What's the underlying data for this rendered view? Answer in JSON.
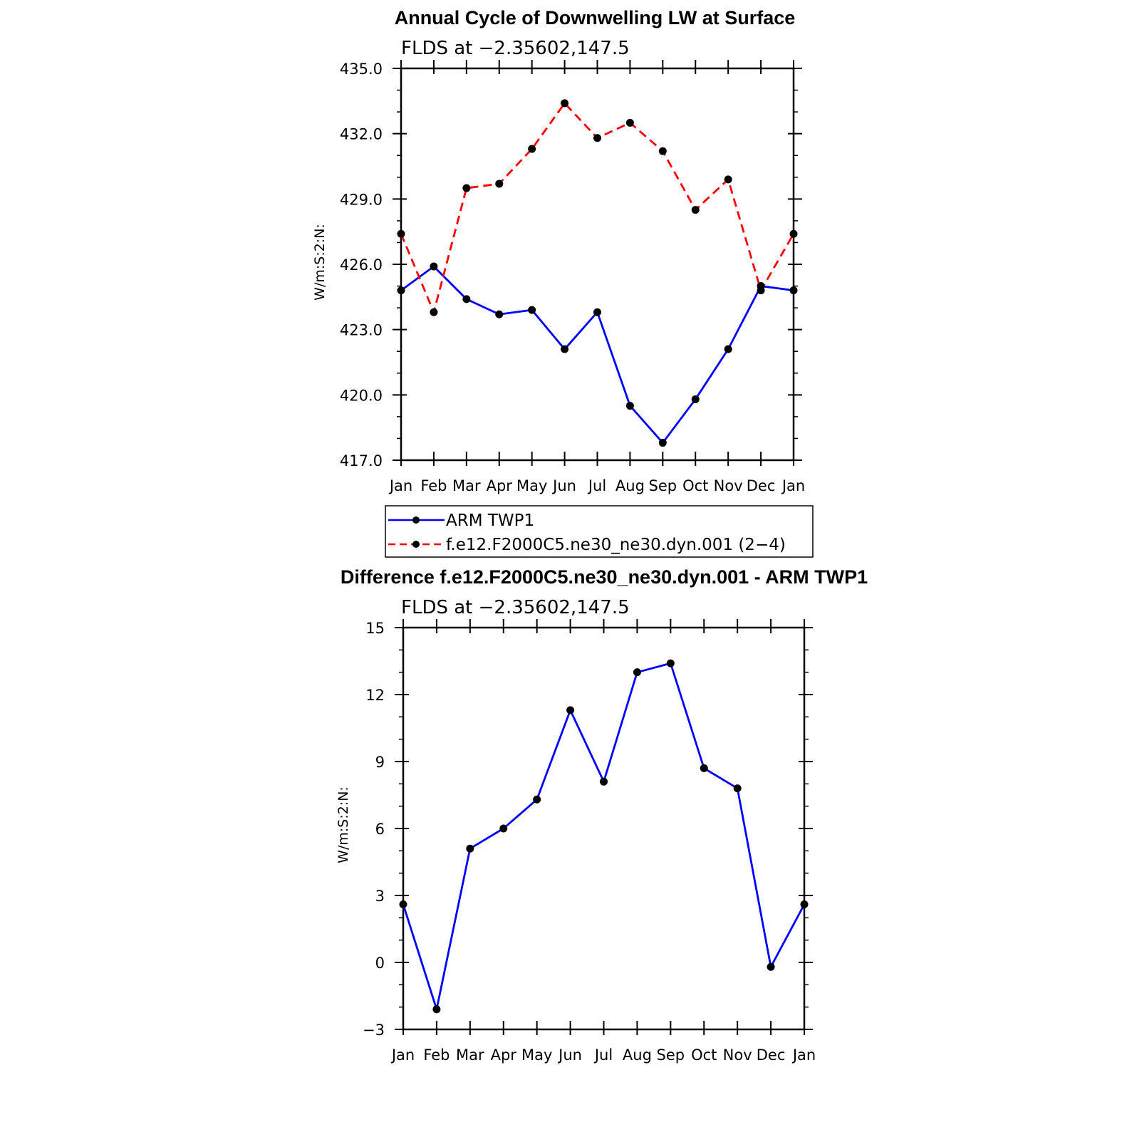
{
  "chart_data": [
    {
      "type": "line",
      "title": "Annual Cycle of Downwelling LW at Surface",
      "subtitle": "FLDS at −2.35602,147.5",
      "xlabel": "",
      "ylabel": "W/m:S:2:N:",
      "categories": [
        "Jan",
        "Feb",
        "Mar",
        "Apr",
        "May",
        "Jun",
        "Jul",
        "Aug",
        "Sep",
        "Oct",
        "Nov",
        "Dec",
        "Jan"
      ],
      "ylim": [
        417.0,
        435.0
      ],
      "yticks": [
        417.0,
        420.0,
        423.0,
        426.0,
        429.0,
        432.0,
        435.0
      ],
      "ytick_labels": [
        "417.0",
        "420.0",
        "423.0",
        "426.0",
        "429.0",
        "432.0",
        "435.0"
      ],
      "series": [
        {
          "name": "ARM TWP1",
          "color": "#0000ff",
          "dash": "solid",
          "values": [
            424.8,
            425.9,
            424.4,
            423.7,
            423.9,
            422.1,
            423.8,
            419.5,
            417.8,
            419.8,
            422.1,
            425.0,
            424.8
          ]
        },
        {
          "name": "f.e12.F2000C5.ne30_ne30.dyn.001 (2−4)",
          "color": "#ff0000",
          "dash": "dashed",
          "values": [
            427.4,
            423.8,
            429.5,
            429.7,
            431.3,
            433.4,
            431.8,
            432.5,
            431.2,
            428.5,
            429.9,
            424.8,
            427.4
          ]
        }
      ]
    },
    {
      "type": "line",
      "title": "Difference f.e12.F2000C5.ne30_ne30.dyn.001 - ARM TWP1",
      "subtitle": "FLDS at −2.35602,147.5",
      "xlabel": "",
      "ylabel": "W/m:S:2:N:",
      "categories": [
        "Jan",
        "Feb",
        "Mar",
        "Apr",
        "May",
        "Jun",
        "Jul",
        "Aug",
        "Sep",
        "Oct",
        "Nov",
        "Dec",
        "Jan"
      ],
      "ylim": [
        -3,
        15
      ],
      "yticks": [
        -3,
        0,
        3,
        6,
        9,
        12,
        15
      ],
      "ytick_labels": [
        "−3",
        "0",
        "3",
        "6",
        "9",
        "12",
        "15"
      ],
      "series": [
        {
          "name": "difference",
          "color": "#0000ff",
          "dash": "solid",
          "values": [
            2.6,
            -2.1,
            5.1,
            6.0,
            7.3,
            11.3,
            8.1,
            13.0,
            13.4,
            8.7,
            7.8,
            -0.2,
            2.6
          ]
        }
      ]
    }
  ],
  "legend": {
    "placement": "below-top-chart",
    "entries": [
      {
        "label": "ARM TWP1",
        "color": "#0000ff",
        "dash": "solid"
      },
      {
        "label": "f.e12.F2000C5.ne30_ne30.dyn.001 (2−4)",
        "color": "#ff0000",
        "dash": "dashed"
      }
    ]
  }
}
